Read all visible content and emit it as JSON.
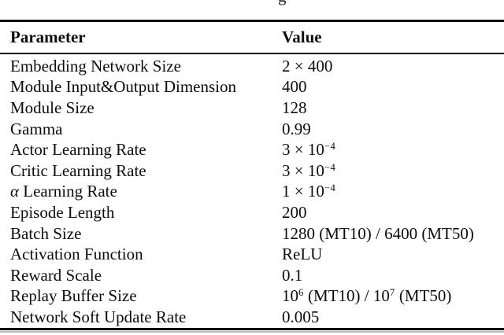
{
  "page": {
    "background_color": "#ffffff",
    "text_color": "#0d0d0d",
    "rule_color": "#0a0a0a",
    "rule_shadow_color": "#bdbdbd"
  },
  "cropped_caption_fragment": "g",
  "table": {
    "header": {
      "parameter": "Parameter",
      "value": "Value"
    },
    "rows": [
      {
        "parameter": [
          {
            "t": "Embedding Network Size"
          }
        ],
        "value": [
          {
            "t": "2 × 400"
          }
        ]
      },
      {
        "parameter": [
          {
            "t": "Module Input&Output Dimension"
          }
        ],
        "value": [
          {
            "t": "400"
          }
        ]
      },
      {
        "parameter": [
          {
            "t": "Module Size"
          }
        ],
        "value": [
          {
            "t": "128"
          }
        ]
      },
      {
        "parameter": [
          {
            "t": "Gamma"
          }
        ],
        "value": [
          {
            "t": "0.99"
          }
        ]
      },
      {
        "parameter": [
          {
            "t": "Actor Learning Rate"
          }
        ],
        "value": [
          {
            "t": "3 × 10"
          },
          {
            "t": "−4",
            "sup": true
          }
        ]
      },
      {
        "parameter": [
          {
            "t": "Critic Learning Rate"
          }
        ],
        "value": [
          {
            "t": "3 × 10"
          },
          {
            "t": "−4",
            "sup": true
          }
        ]
      },
      {
        "parameter": [
          {
            "t": "α",
            "italic": true
          },
          {
            "t": " Learning Rate"
          }
        ],
        "value": [
          {
            "t": "1 × 10"
          },
          {
            "t": "−4",
            "sup": true
          }
        ]
      },
      {
        "parameter": [
          {
            "t": "Episode Length"
          }
        ],
        "value": [
          {
            "t": "200"
          }
        ]
      },
      {
        "parameter": [
          {
            "t": "Batch Size"
          }
        ],
        "value": [
          {
            "t": "1280 (MT10) / 6400 (MT50)"
          }
        ]
      },
      {
        "parameter": [
          {
            "t": "Activation Function"
          }
        ],
        "value": [
          {
            "t": "ReLU"
          }
        ]
      },
      {
        "parameter": [
          {
            "t": "Reward Scale"
          }
        ],
        "value": [
          {
            "t": "0.1"
          }
        ]
      },
      {
        "parameter": [
          {
            "t": "Replay Buffer Size"
          }
        ],
        "value": [
          {
            "t": "10"
          },
          {
            "t": "6",
            "sup": true
          },
          {
            "t": " (MT10) / 10"
          },
          {
            "t": "7",
            "sup": true
          },
          {
            "t": " (MT50)"
          }
        ]
      },
      {
        "parameter": [
          {
            "t": "Network Soft Update Rate"
          }
        ],
        "value": [
          {
            "t": "0.005"
          }
        ]
      }
    ]
  }
}
